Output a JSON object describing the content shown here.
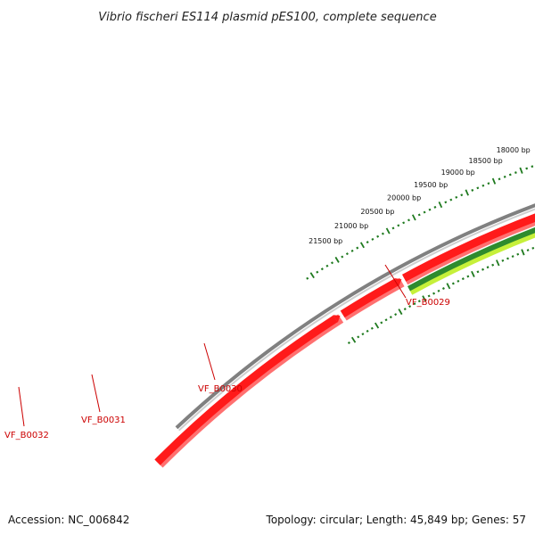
{
  "title": "Vibrio fischeri ES114 plasmid pES100, complete sequence",
  "footer": {
    "accession": "Accession: NC_006842",
    "summary": "Topology: circular; Length: 45,849 bp; Genes: 57"
  },
  "colors": {
    "backbone": "#808080",
    "forward_gene": "#ff1a1a",
    "forward_gene_shadow": "#ff7070",
    "gc_dark": "#2e8b2e",
    "gc_light": "#c6f03a",
    "tick": "#1f7a1f",
    "gene_label": "#cc0000"
  },
  "position_labels": [
    {
      "bp": 18000,
      "text": "18000 bp"
    },
    {
      "bp": 18500,
      "text": "18500 bp"
    },
    {
      "bp": 19000,
      "text": "19000 bp"
    },
    {
      "bp": 19500,
      "text": "19500 bp"
    },
    {
      "bp": 20000,
      "text": "20000 bp"
    },
    {
      "bp": 20500,
      "text": "20500 bp"
    },
    {
      "bp": 21000,
      "text": "21000 bp"
    },
    {
      "bp": 21500,
      "text": "21500 bp"
    }
  ],
  "genes": [
    {
      "id": "VF_B0029",
      "label": "VF_B0029"
    },
    {
      "id": "VF_B0030",
      "label": "VF_B0030"
    },
    {
      "id": "VF_B0031",
      "label": "VF_B0031"
    },
    {
      "id": "VF_B0032",
      "label": "VF_B0032"
    }
  ]
}
